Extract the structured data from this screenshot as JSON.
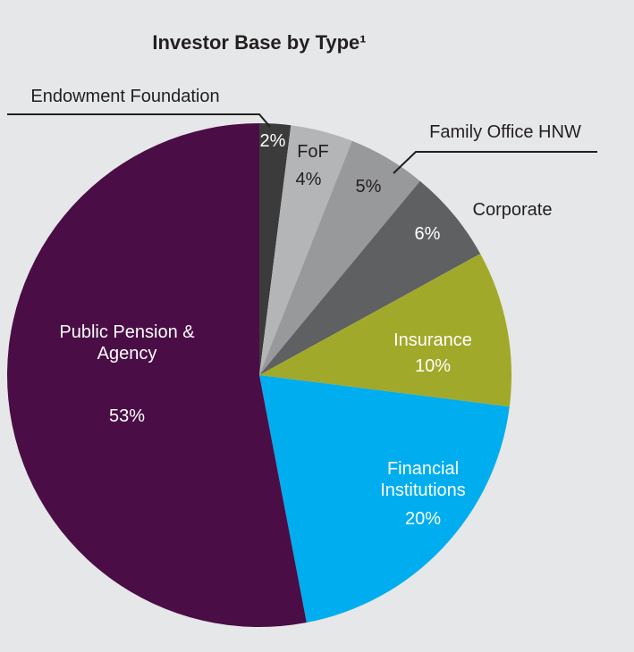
{
  "chart_data": {
    "type": "pie",
    "title": "Investor Base by Type¹",
    "categories": [
      "Endowment Foundation",
      "FoF",
      "Family Office HNW",
      "Corporate",
      "Insurance",
      "Financial Institutions",
      "Public Pension & Agency"
    ],
    "values": [
      2,
      4,
      5,
      6,
      10,
      20,
      53
    ],
    "value_labels": [
      "2%",
      "4%",
      "5%",
      "6%",
      "10%",
      "20%",
      "53%"
    ],
    "colors": [
      "#3b3b3c",
      "#b4b5b7",
      "#98999b",
      "#5f6062",
      "#a1a92a",
      "#00adee",
      "#4a0d46"
    ]
  }
}
